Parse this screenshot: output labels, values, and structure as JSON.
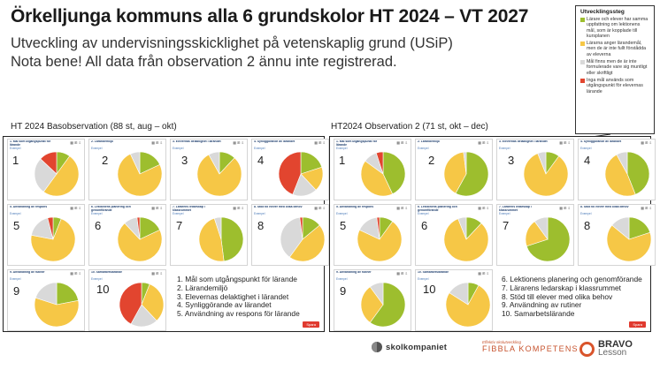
{
  "title": "Örkelljunga kommuns alla 6 grundskolor HT 2024 – VT 2027",
  "subtitle1": "Utveckling av undervisningsskicklighet på vetenskaplig grund (USiP)",
  "subtitle2": "Nota bene! All data från observation 2 ännu inte registrerad.",
  "legend": {
    "title": "Utvecklingssteg",
    "items": [
      {
        "color": "#9dbe2e",
        "text": "Lärare och elever har samma uppfattning om lektionens mål, som är kopplade till kursplanen"
      },
      {
        "color": "#f6c746",
        "text": "Lärarna anger lärandemål, men de är inte fullt förstådda av eleverna"
      },
      {
        "color": "#d9d9d9",
        "text": "Mål finns men de är inte formulerade vare sig muntligt eller skriftligt"
      },
      {
        "color": "#e2452f",
        "text": "Inga mål används som utgångspunkt för elevernas lärande"
      }
    ]
  },
  "left": {
    "label": "HT 2024 Basobservation (88 st, aug – okt)",
    "cards": [
      {
        "num": "1",
        "title": "1. Mål som utgångspunkt för lärande",
        "slices": [
          10,
          50,
          27,
          13
        ]
      },
      {
        "num": "2",
        "title": "2. Lärandemiljö",
        "slices": [
          18,
          75,
          7,
          0
        ]
      },
      {
        "num": "3",
        "title": "3. Elevernas delaktighet i lärandet",
        "slices": [
          12,
          80,
          8,
          0
        ]
      },
      {
        "num": "4",
        "title": "4. Synliggörande av lärandet",
        "slices": [
          20,
          18,
          18,
          44
        ]
      },
      {
        "num": "5",
        "title": "5. Användning av respons",
        "slices": [
          6,
          72,
          18,
          4
        ]
      },
      {
        "num": "6",
        "title": "6. Lektionens planering och genomförande",
        "slices": [
          18,
          70,
          10,
          2
        ]
      },
      {
        "num": "7",
        "title": "7. Lärarens ledarskap i klassrummet",
        "slices": [
          48,
          47,
          5,
          0
        ]
      },
      {
        "num": "8",
        "title": "8. Stöd till elever med olika behov",
        "slices": [
          14,
          46,
          38,
          2
        ]
      },
      {
        "num": "9",
        "title": "9. Användning av rutiner",
        "slices": [
          22,
          58,
          20,
          0
        ]
      },
      {
        "num": "10",
        "title": "10. Samarbetslärande",
        "slices": [
          6,
          32,
          20,
          42
        ]
      }
    ],
    "list": [
      "1. Mål som utgångspunkt för lärande",
      "2. Lärandemiljö",
      "3. Elevernas delaktighet i lärandet",
      "4. Synliggörande av lärandet",
      "5. Användning av respons för lärande"
    ]
  },
  "right": {
    "label": "HT2024 Observation 2 (71 st, okt – dec)",
    "cards": [
      {
        "num": "1",
        "title": "1. Mål som utgångspunkt för lärande",
        "slices": [
          43,
          42,
          10,
          5
        ]
      },
      {
        "num": "2",
        "title": "2. Lärandemiljö",
        "slices": [
          58,
          40,
          2,
          0
        ]
      },
      {
        "num": "3",
        "title": "3. Elevernas delaktighet i lärandet",
        "slices": [
          10,
          84,
          6,
          0
        ]
      },
      {
        "num": "4",
        "title": "4. Synliggörande av lärandet",
        "slices": [
          44,
          48,
          8,
          0
        ]
      },
      {
        "num": "5",
        "title": "5. Användning av respons",
        "slices": [
          10,
          72,
          16,
          2
        ]
      },
      {
        "num": "6",
        "title": "6. Lektionens planering och genomförande",
        "slices": [
          12,
          82,
          6,
          0
        ]
      },
      {
        "num": "7",
        "title": "7. Lärarens ledarskap i klassrummet",
        "slices": [
          70,
          20,
          10,
          0
        ]
      },
      {
        "num": "8",
        "title": "8. Stöd till elever med olika behov",
        "slices": [
          20,
          66,
          14,
          0
        ]
      },
      {
        "num": "9",
        "title": "9. Användning av rutiner",
        "slices": [
          60,
          30,
          10,
          0
        ]
      },
      {
        "num": "10",
        "title": "10. Samarbetslärande",
        "slices": [
          8,
          76,
          16,
          0
        ]
      }
    ],
    "list": [
      "6. Lektionens planering och genomförande",
      "7. Lärarens ledarskap i klassrummet",
      "8. Stöd till elever med olika behov",
      "9. Användning av rutiner",
      "10. Samarbetslärande"
    ]
  },
  "card_link": "Exempel",
  "card_tools": "▦ ⊞ ⇩",
  "save_label": "Spara",
  "logos": {
    "skolkompaniet": "skolkompaniet",
    "fibbla_small": "Effektiv skolutveckling",
    "fibbla_big": "FIBBLA KOMPETENS",
    "bravo": "BRAVO",
    "lesson": "Lesson"
  },
  "colors": {
    "green": "#9dbe2e",
    "yellow": "#f6c746",
    "grey": "#d9d9d9",
    "red": "#e2452f"
  }
}
